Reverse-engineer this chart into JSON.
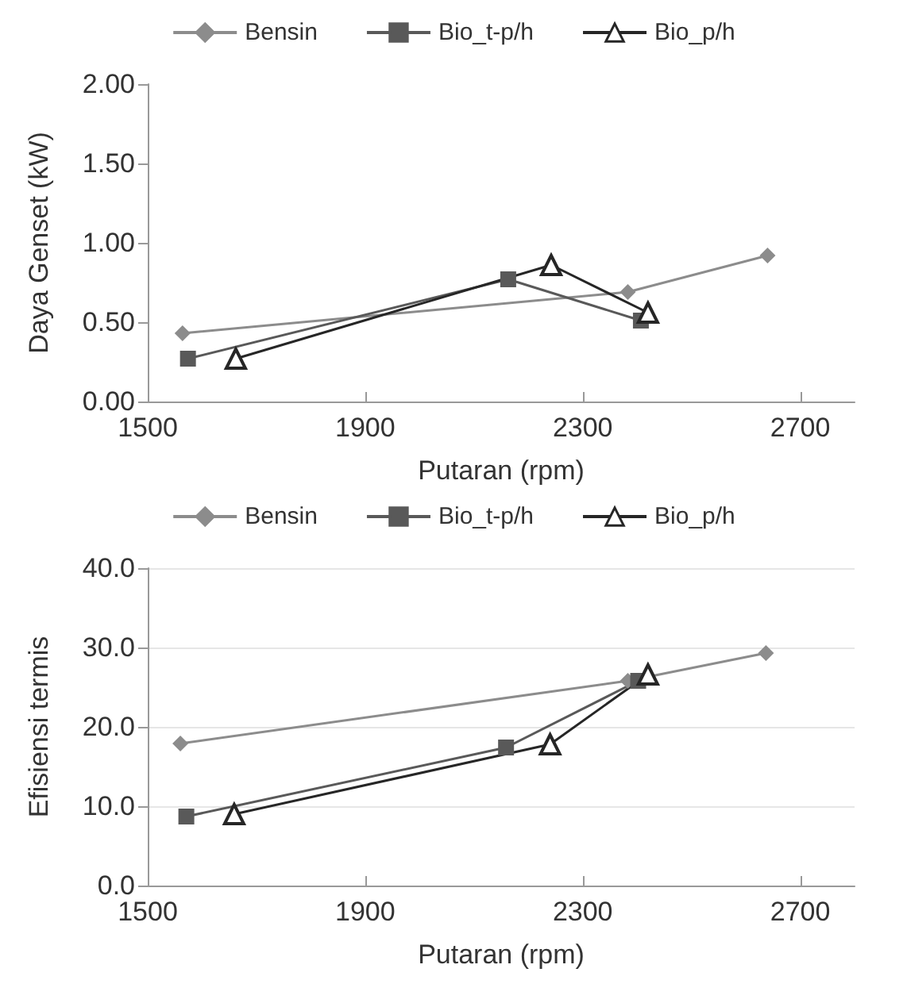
{
  "chart_data": [
    {
      "type": "line",
      "xlabel": "Putaran (rpm)",
      "ylabel": "Daya Genset (kW)",
      "xlim": [
        1500,
        2800
      ],
      "xticks": [
        1500,
        1900,
        2300,
        2700
      ],
      "ylim": [
        0,
        2
      ],
      "yticks": [
        {
          "value": 0,
          "label": "0.00"
        },
        {
          "value": 0.5,
          "label": "0.50"
        },
        {
          "value": 1,
          "label": "1.00"
        },
        {
          "value": 1.5,
          "label": "1.50"
        },
        {
          "value": 2,
          "label": "2.00"
        }
      ],
      "grid": false,
      "legend": "top",
      "series": [
        {
          "name": "Bensin",
          "color": "#8c8c8c",
          "marker": "diamond",
          "x": [
            1564,
            2383,
            2640
          ],
          "values": [
            0.43,
            0.69,
            0.92
          ]
        },
        {
          "name": "Bio_t-p/h",
          "color": "#595959",
          "marker": "square",
          "x": [
            1574,
            2163,
            2407
          ],
          "values": [
            0.27,
            0.77,
            0.51
          ]
        },
        {
          "name": "Bio_p/h",
          "color": "#262626",
          "marker": "triangle",
          "x": [
            1662,
            2242,
            2420
          ],
          "values": [
            0.27,
            0.86,
            0.56
          ]
        }
      ]
    },
    {
      "type": "line",
      "xlabel": "Putaran (rpm)",
      "ylabel": "Efisiensi termis",
      "xlim": [
        1500,
        2800
      ],
      "xticks": [
        1500,
        1900,
        2300,
        2700
      ],
      "ylim": [
        0,
        40
      ],
      "yticks": [
        {
          "value": 0,
          "label": "0.0"
        },
        {
          "value": 10,
          "label": "10.0"
        },
        {
          "value": 20,
          "label": "20.0"
        },
        {
          "value": 30,
          "label": "30.0"
        },
        {
          "value": 40,
          "label": "40.0"
        }
      ],
      "grid": "y",
      "legend": "top",
      "series": [
        {
          "name": "Bensin",
          "color": "#8c8c8c",
          "marker": "diamond",
          "x": [
            1560,
            2383,
            2637
          ],
          "values": [
            17.9,
            25.8,
            29.3
          ]
        },
        {
          "name": "Bio_t-p/h",
          "color": "#595959",
          "marker": "square",
          "x": [
            1571,
            2159,
            2402
          ],
          "values": [
            8.7,
            17.4,
            25.8
          ]
        },
        {
          "name": "Bio_p/h",
          "color": "#262626",
          "marker": "triangle",
          "x": [
            1659,
            2240,
            2420
          ],
          "values": [
            9.0,
            17.8,
            26.6
          ]
        }
      ]
    }
  ]
}
